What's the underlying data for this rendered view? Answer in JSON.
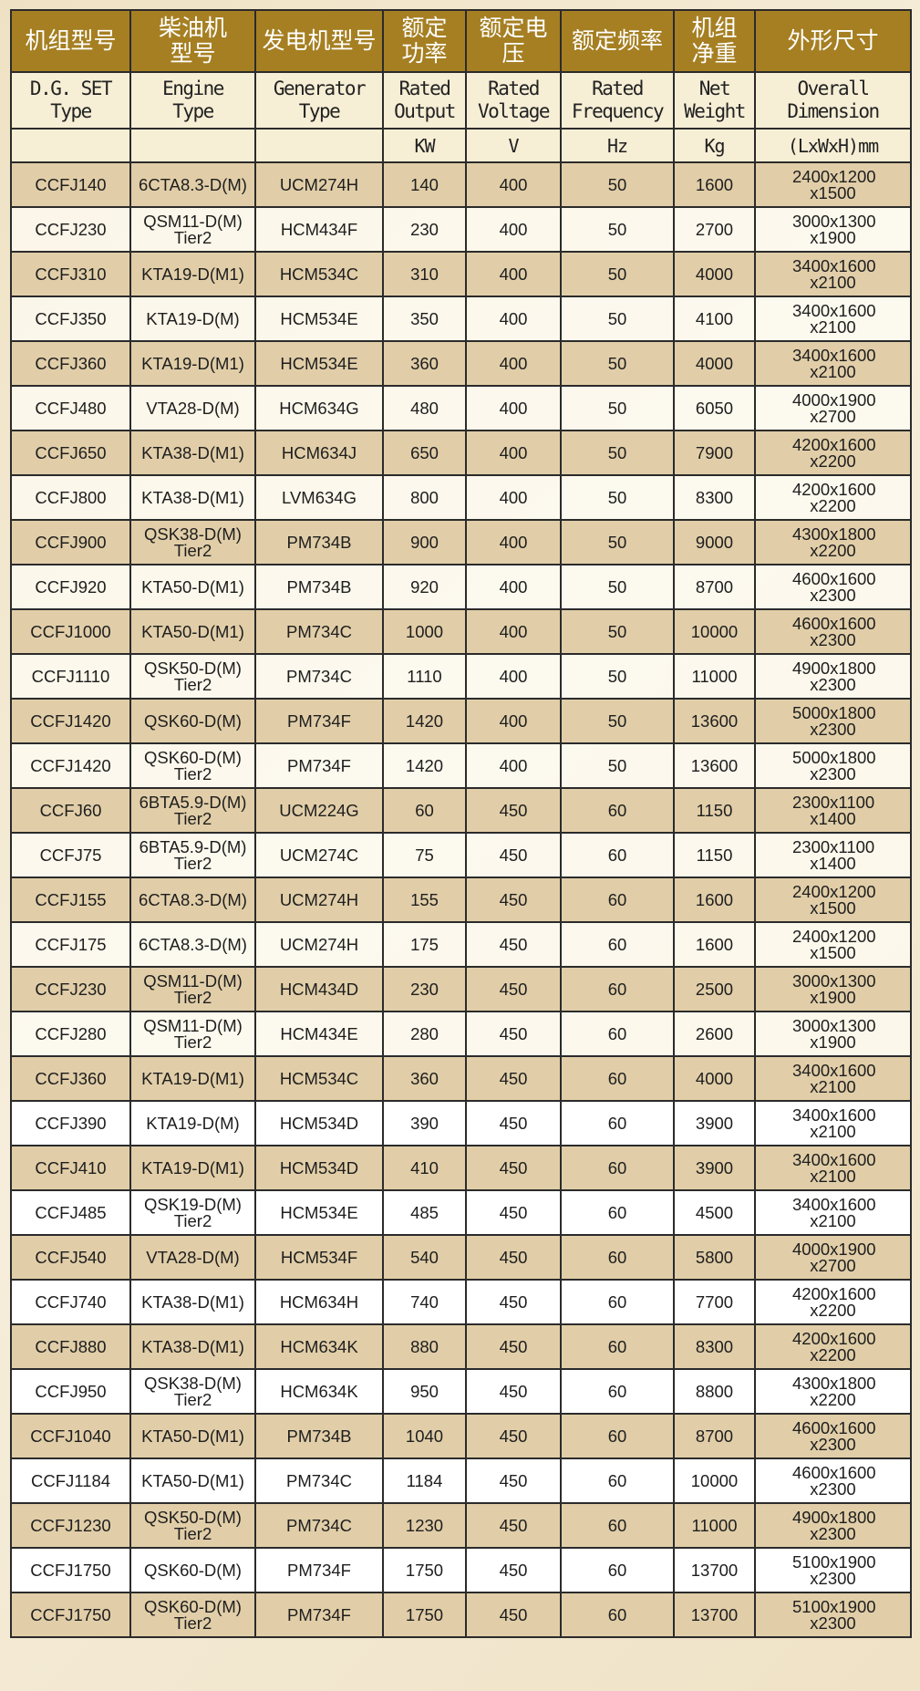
{
  "header_zh": [
    "机组型号",
    "柴油机型号",
    "发电机型号",
    "额定功率",
    "额定电压",
    "额定频率",
    "机组净重",
    "外形尺寸"
  ],
  "header_en": [
    "D.G. SET Type",
    "Engine Type",
    "Generator Type",
    "Rated Output",
    "Rated Voltage",
    "Rated Frequency",
    "Net Weight",
    "Overall Dimension"
  ],
  "units": [
    "",
    "",
    "",
    "KW",
    "V",
    "Hz",
    "Kg",
    "(LxWxH)mm"
  ],
  "colors": {
    "header": "#a57f22",
    "tan_row": "#e1cea8",
    "border": "#2b2b2b"
  },
  "rows": [
    [
      "CCFJ140",
      "6CTA8.3-D(M)",
      "UCM274H",
      "140",
      "400",
      "50",
      "1600",
      "2400x1200 x1500"
    ],
    [
      "CCFJ230",
      "QSM11-D(M) Tier2",
      "HCM434F",
      "230",
      "400",
      "50",
      "2700",
      "3000x1300 x1900"
    ],
    [
      "CCFJ310",
      "KTA19-D(M1)",
      "HCM534C",
      "310",
      "400",
      "50",
      "4000",
      "3400x1600 x2100"
    ],
    [
      "CCFJ350",
      "KTA19-D(M)",
      "HCM534E",
      "350",
      "400",
      "50",
      "4100",
      "3400x1600 x2100"
    ],
    [
      "CCFJ360",
      "KTA19-D(M1)",
      "HCM534E",
      "360",
      "400",
      "50",
      "4000",
      "3400x1600 x2100"
    ],
    [
      "CCFJ480",
      "VTA28-D(M)",
      "HCM634G",
      "480",
      "400",
      "50",
      "6050",
      "4000x1900 x2700"
    ],
    [
      "CCFJ650",
      "KTA38-D(M1)",
      "HCM634J",
      "650",
      "400",
      "50",
      "7900",
      "4200x1600 x2200"
    ],
    [
      "CCFJ800",
      "KTA38-D(M1)",
      "LVM634G",
      "800",
      "400",
      "50",
      "8300",
      "4200x1600 x2200"
    ],
    [
      "CCFJ900",
      "QSK38-D(M) Tier2",
      "PM734B",
      "900",
      "400",
      "50",
      "9000",
      "4300x1800 x2200"
    ],
    [
      "CCFJ920",
      "KTA50-D(M1)",
      "PM734B",
      "920",
      "400",
      "50",
      "8700",
      "4600x1600 x2300"
    ],
    [
      "CCFJ1000",
      "KTA50-D(M1)",
      "PM734C",
      "1000",
      "400",
      "50",
      "10000",
      "4600x1600 x2300"
    ],
    [
      "CCFJ1110",
      "QSK50-D(M) Tier2",
      "PM734C",
      "1110",
      "400",
      "50",
      "11000",
      "4900x1800 x2300"
    ],
    [
      "CCFJ1420",
      "QSK60-D(M)",
      "PM734F",
      "1420",
      "400",
      "50",
      "13600",
      "5000x1800 x2300"
    ],
    [
      "CCFJ1420",
      "QSK60-D(M) Tier2",
      "PM734F",
      "1420",
      "400",
      "50",
      "13600",
      "5000x1800 x2300"
    ],
    [
      "CCFJ60",
      "6BTA5.9-D(M) Tier2",
      "UCM224G",
      "60",
      "450",
      "60",
      "1150",
      "2300x1100 x1400"
    ],
    [
      "CCFJ75",
      "6BTA5.9-D(M) Tier2",
      "UCM274C",
      "75",
      "450",
      "60",
      "1150",
      "2300x1100 x1400"
    ],
    [
      "CCFJ155",
      "6CTA8.3-D(M)",
      "UCM274H",
      "155",
      "450",
      "60",
      "1600",
      "2400x1200 x1500"
    ],
    [
      "CCFJ175",
      "6CTA8.3-D(M)",
      "UCM274H",
      "175",
      "450",
      "60",
      "1600",
      "2400x1200 x1500"
    ],
    [
      "CCFJ230",
      "QSM11-D(M) Tier2",
      "HCM434D",
      "230",
      "450",
      "60",
      "2500",
      "3000x1300 x1900"
    ],
    [
      "CCFJ280",
      "QSM11-D(M) Tier2",
      "HCM434E",
      "280",
      "450",
      "60",
      "2600",
      "3000x1300 x1900"
    ],
    [
      "CCFJ360",
      "KTA19-D(M1)",
      "HCM534C",
      "360",
      "450",
      "60",
      "4000",
      "3400x1600 x2100"
    ],
    [
      "CCFJ390",
      "KTA19-D(M)",
      "HCM534D",
      "390",
      "450",
      "60",
      "3900",
      "3400x1600 x2100"
    ],
    [
      "CCFJ410",
      "KTA19-D(M1)",
      "HCM534D",
      "410",
      "450",
      "60",
      "3900",
      "3400x1600 x2100"
    ],
    [
      "CCFJ485",
      "QSK19-D(M) Tier2",
      "HCM534E",
      "485",
      "450",
      "60",
      "4500",
      "3400x1600 x2100"
    ],
    [
      "CCFJ540",
      "VTA28-D(M)",
      "HCM534F",
      "540",
      "450",
      "60",
      "5800",
      "4000x1900 x2700"
    ],
    [
      "CCFJ740",
      "KTA38-D(M1)",
      "HCM634H",
      "740",
      "450",
      "60",
      "7700",
      "4200x1600 x2200"
    ],
    [
      "CCFJ880",
      "KTA38-D(M1)",
      "HCM634K",
      "880",
      "450",
      "60",
      "8300",
      "4200x1600 x2200"
    ],
    [
      "CCFJ950",
      "QSK38-D(M) Tier2",
      "HCM634K",
      "950",
      "450",
      "60",
      "8800",
      "4300x1800 x2200"
    ],
    [
      "CCFJ1040",
      "KTA50-D(M1)",
      "PM734B",
      "1040",
      "450",
      "60",
      "8700",
      "4600x1600 x2300"
    ],
    [
      "CCFJ1184",
      "KTA50-D(M1)",
      "PM734C",
      "1184",
      "450",
      "60",
      "10000",
      "4600x1600 x2300"
    ],
    [
      "CCFJ1230",
      "QSK50-D(M) Tier2",
      "PM734C",
      "1230",
      "450",
      "60",
      "11000",
      "4900x1800 x2300"
    ],
    [
      "CCFJ1750",
      "QSK60-D(M)",
      "PM734F",
      "1750",
      "450",
      "60",
      "13700",
      "5100x1900 x2300"
    ],
    [
      "CCFJ1750",
      "QSK60-D(M) Tier2",
      "PM734F",
      "1750",
      "450",
      "60",
      "13700",
      "5100x1900 x2300"
    ]
  ]
}
